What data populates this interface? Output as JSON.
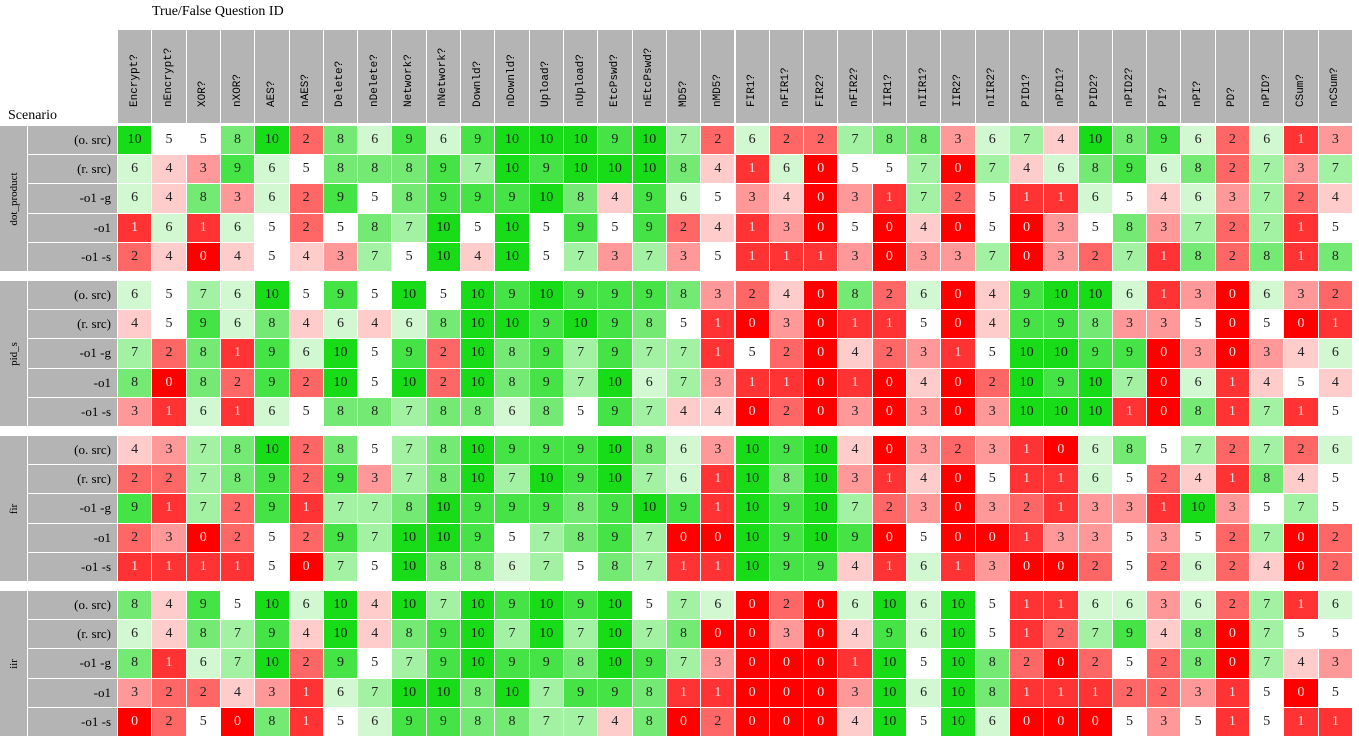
{
  "header": {
    "title": "True/False Question ID",
    "row_header": "Scenario"
  },
  "columns": [
    "Encrypt?",
    "nEncrypt?",
    "XOR?",
    "nXOR?",
    "AES?",
    "nAES?",
    "Delete?",
    "nDelete?",
    "Network?",
    "nNetwork?",
    "Downld?",
    "nDownld?",
    "Upload?",
    "nUpload?",
    "EtcPswd?",
    "nEtcPswd?",
    "MD5?",
    "nMD5?",
    "FIR1?",
    "nFIR1?",
    "FIR2?",
    "nFIR2?",
    "IIR1?",
    "nIIR1?",
    "IIR2?",
    "nIIR2?",
    "PID1?",
    "nPID1?",
    "PID2?",
    "nPID2?",
    "PI?",
    "nPI?",
    "PD?",
    "nPID?",
    "CSum?",
    "nCSum?"
  ],
  "groups": [
    {
      "name": "dot_product",
      "rows": [
        {
          "label": "(o. src)",
          "values": [
            10,
            5,
            5,
            8,
            10,
            2,
            8,
            6,
            9,
            6,
            9,
            10,
            10,
            10,
            9,
            10,
            7,
            2,
            6,
            2,
            2,
            7,
            8,
            8,
            3,
            6,
            7,
            4,
            10,
            8,
            9,
            6,
            2,
            6,
            1,
            3
          ]
        },
        {
          "label": "(r. src)",
          "values": [
            6,
            4,
            3,
            9,
            6,
            5,
            8,
            8,
            8,
            9,
            7,
            10,
            9,
            10,
            10,
            10,
            8,
            4,
            1,
            6,
            0,
            5,
            5,
            7,
            0,
            7,
            4,
            6,
            8,
            9,
            6,
            8,
            2,
            7,
            3,
            7
          ]
        },
        {
          "label": "-o1 -g",
          "values": [
            6,
            4,
            8,
            3,
            6,
            2,
            9,
            5,
            8,
            9,
            9,
            9,
            10,
            8,
            4,
            9,
            6,
            5,
            3,
            4,
            0,
            3,
            1,
            7,
            2,
            5,
            1,
            1,
            6,
            5,
            4,
            6,
            3,
            7,
            2,
            4
          ]
        },
        {
          "label": "-o1",
          "values": [
            1,
            6,
            1,
            6,
            5,
            2,
            5,
            8,
            7,
            10,
            5,
            10,
            5,
            9,
            5,
            9,
            2,
            4,
            1,
            3,
            0,
            5,
            0,
            4,
            0,
            5,
            0,
            3,
            5,
            8,
            3,
            7,
            2,
            7,
            1,
            5
          ]
        },
        {
          "label": "-o1 -s",
          "values": [
            2,
            4,
            0,
            4,
            5,
            4,
            3,
            7,
            5,
            10,
            4,
            10,
            5,
            7,
            3,
            7,
            3,
            5,
            1,
            1,
            1,
            3,
            0,
            3,
            3,
            7,
            0,
            3,
            2,
            7,
            1,
            8,
            2,
            8,
            1,
            8
          ]
        }
      ]
    },
    {
      "name": "pid_s",
      "rows": [
        {
          "label": "(o. src)",
          "values": [
            6,
            5,
            7,
            6,
            10,
            5,
            9,
            5,
            10,
            5,
            10,
            9,
            10,
            9,
            9,
            9,
            8,
            3,
            2,
            4,
            0,
            8,
            2,
            6,
            0,
            4,
            9,
            10,
            10,
            6,
            1,
            3,
            0,
            6,
            3,
            2
          ]
        },
        {
          "label": "(r. src)",
          "values": [
            4,
            5,
            9,
            6,
            8,
            4,
            6,
            4,
            6,
            8,
            10,
            10,
            9,
            10,
            9,
            8,
            5,
            1,
            0,
            3,
            0,
            1,
            1,
            5,
            0,
            4,
            9,
            9,
            8,
            3,
            3,
            5,
            0,
            5,
            0,
            1
          ]
        },
        {
          "label": "-o1 -g",
          "values": [
            7,
            2,
            8,
            1,
            9,
            6,
            10,
            5,
            9,
            2,
            10,
            8,
            9,
            7,
            9,
            7,
            7,
            1,
            5,
            2,
            0,
            4,
            2,
            3,
            1,
            5,
            10,
            10,
            9,
            9,
            0,
            3,
            0,
            3,
            4,
            6
          ]
        },
        {
          "label": "-o1",
          "values": [
            8,
            0,
            8,
            2,
            9,
            2,
            10,
            5,
            10,
            2,
            10,
            8,
            9,
            7,
            10,
            6,
            7,
            3,
            1,
            1,
            0,
            1,
            0,
            4,
            0,
            2,
            10,
            9,
            10,
            7,
            0,
            6,
            1,
            4,
            5,
            4
          ]
        },
        {
          "label": "-o1 -s",
          "values": [
            3,
            1,
            6,
            1,
            6,
            5,
            8,
            8,
            7,
            8,
            8,
            6,
            8,
            5,
            9,
            7,
            4,
            4,
            0,
            2,
            0,
            3,
            0,
            3,
            0,
            3,
            10,
            10,
            10,
            1,
            0,
            8,
            1,
            7,
            1,
            5
          ]
        }
      ]
    },
    {
      "name": "fir",
      "rows": [
        {
          "label": "(o. src)",
          "values": [
            4,
            3,
            7,
            8,
            10,
            2,
            8,
            5,
            7,
            8,
            10,
            9,
            9,
            9,
            10,
            8,
            6,
            3,
            10,
            9,
            10,
            4,
            0,
            3,
            2,
            3,
            1,
            0,
            6,
            8,
            5,
            7,
            2,
            7,
            2,
            6
          ]
        },
        {
          "label": "(r. src)",
          "values": [
            2,
            2,
            7,
            8,
            9,
            2,
            9,
            3,
            7,
            8,
            10,
            7,
            10,
            9,
            10,
            7,
            6,
            1,
            10,
            8,
            10,
            3,
            1,
            4,
            0,
            5,
            1,
            1,
            6,
            5,
            2,
            4,
            1,
            8,
            4,
            5
          ]
        },
        {
          "label": "-o1 -g",
          "values": [
            9,
            1,
            7,
            2,
            9,
            1,
            7,
            7,
            8,
            10,
            9,
            9,
            9,
            8,
            9,
            10,
            9,
            1,
            10,
            9,
            10,
            7,
            2,
            3,
            0,
            3,
            2,
            1,
            3,
            3,
            1,
            10,
            3,
            5,
            7,
            5
          ]
        },
        {
          "label": "-o1",
          "values": [
            2,
            3,
            0,
            2,
            5,
            2,
            9,
            7,
            10,
            10,
            9,
            5,
            7,
            8,
            9,
            7,
            0,
            0,
            10,
            9,
            10,
            9,
            0,
            5,
            0,
            0,
            1,
            3,
            3,
            5,
            3,
            5,
            2,
            7,
            0,
            2
          ]
        },
        {
          "label": "-o1 -s",
          "values": [
            1,
            1,
            1,
            1,
            5,
            0,
            7,
            5,
            10,
            8,
            8,
            6,
            7,
            5,
            8,
            7,
            1,
            1,
            10,
            9,
            9,
            4,
            1,
            6,
            1,
            3,
            0,
            0,
            2,
            5,
            2,
            6,
            2,
            4,
            0,
            2
          ]
        }
      ]
    },
    {
      "name": "iir",
      "rows": [
        {
          "label": "(o. src)",
          "values": [
            8,
            4,
            9,
            5,
            10,
            6,
            10,
            4,
            10,
            7,
            10,
            9,
            10,
            9,
            10,
            5,
            7,
            6,
            0,
            2,
            0,
            6,
            10,
            6,
            10,
            5,
            1,
            1,
            6,
            6,
            3,
            6,
            2,
            7,
            1,
            6
          ]
        },
        {
          "label": "(r. src)",
          "values": [
            6,
            4,
            8,
            7,
            9,
            4,
            10,
            4,
            8,
            9,
            10,
            7,
            10,
            7,
            10,
            7,
            8,
            0,
            0,
            3,
            0,
            4,
            9,
            6,
            10,
            5,
            1,
            2,
            7,
            9,
            4,
            8,
            0,
            7,
            5,
            5
          ]
        },
        {
          "label": "-o1 -g",
          "values": [
            8,
            1,
            6,
            7,
            10,
            2,
            9,
            5,
            7,
            9,
            10,
            9,
            9,
            8,
            10,
            9,
            7,
            3,
            0,
            0,
            0,
            1,
            10,
            5,
            10,
            8,
            2,
            0,
            2,
            5,
            2,
            8,
            0,
            7,
            4,
            3
          ]
        },
        {
          "label": "-o1",
          "values": [
            3,
            2,
            2,
            4,
            3,
            1,
            6,
            7,
            10,
            10,
            8,
            10,
            7,
            9,
            9,
            8,
            1,
            1,
            0,
            0,
            0,
            3,
            10,
            6,
            10,
            8,
            1,
            1,
            1,
            2,
            2,
            3,
            1,
            5,
            0,
            5
          ]
        },
        {
          "label": "-o1 -s",
          "values": [
            0,
            2,
            5,
            0,
            8,
            1,
            5,
            6,
            9,
            9,
            8,
            8,
            7,
            7,
            4,
            8,
            0,
            2,
            0,
            0,
            0,
            4,
            10,
            5,
            10,
            6,
            0,
            0,
            0,
            5,
            3,
            5,
            1,
            5,
            1,
            1
          ]
        }
      ]
    }
  ]
}
